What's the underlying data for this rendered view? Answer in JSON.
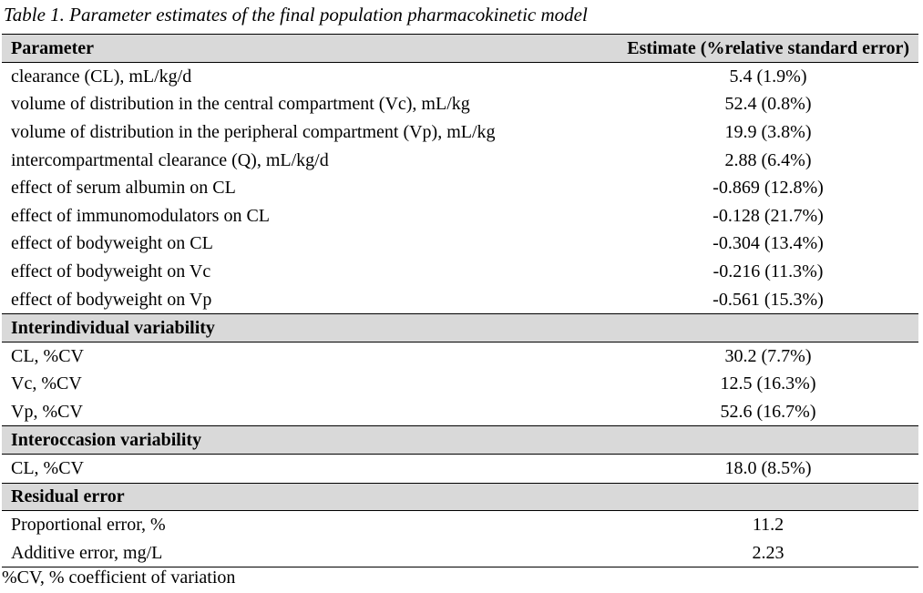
{
  "caption": "Table 1. Parameter estimates of the final population pharmacokinetic model",
  "header": {
    "parameter": "Parameter",
    "estimate": "Estimate (%relative standard error)"
  },
  "fixed_effects": [
    {
      "parameter": "clearance (CL), mL/kg/d",
      "estimate": "5.4 (1.9%)"
    },
    {
      "parameter": "volume of distribution in the central compartment (Vc), mL/kg",
      "estimate": "52.4 (0.8%)"
    },
    {
      "parameter": "volume of distribution in the peripheral compartment (Vp), mL/kg",
      "estimate": "19.9 (3.8%)"
    },
    {
      "parameter": "intercompartmental clearance (Q), mL/kg/d",
      "estimate": "2.88 (6.4%)"
    },
    {
      "parameter": "effect of serum albumin on CL",
      "estimate": "-0.869 (12.8%)"
    },
    {
      "parameter": "effect of immunomodulators on CL",
      "estimate": "-0.128 (21.7%)"
    },
    {
      "parameter": "effect of bodyweight on CL",
      "estimate": "-0.304 (13.4%)"
    },
    {
      "parameter": "effect of bodyweight on Vc",
      "estimate": "-0.216 (11.3%)"
    },
    {
      "parameter": "effect of bodyweight on Vp",
      "estimate": "-0.561 (15.3%)"
    }
  ],
  "interindividual": {
    "title": "Interindividual variability",
    "rows": [
      {
        "parameter": "CL, %CV",
        "estimate": "30.2 (7.7%)"
      },
      {
        "parameter": "Vc, %CV",
        "estimate": "12.5 (16.3%)"
      },
      {
        "parameter": "Vp, %CV",
        "estimate": "52.6 (16.7%)"
      }
    ]
  },
  "interoccasion": {
    "title": "Interoccasion variability",
    "rows": [
      {
        "parameter": "CL, %CV",
        "estimate": "18.0 (8.5%)"
      }
    ]
  },
  "residual": {
    "title": "Residual error",
    "rows": [
      {
        "parameter": "Proportional error, %",
        "estimate": "11.2"
      },
      {
        "parameter": "Additive error, mg/L",
        "estimate": "2.23"
      }
    ]
  },
  "footnote": "%CV, % coefficient of variation"
}
